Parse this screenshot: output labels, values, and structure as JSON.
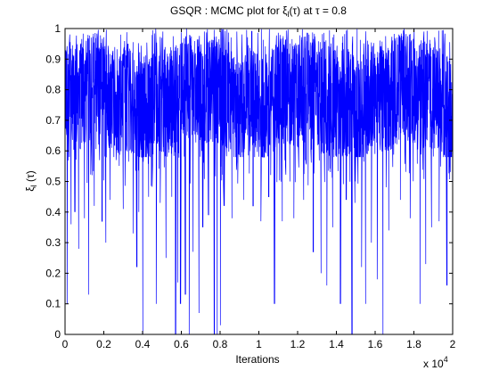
{
  "chart_data": {
    "type": "line",
    "title": "GSQR : MCMC plot for ξl(τ) at τ = 0.8",
    "title_parts": {
      "prefix": "GSQR : MCMC plot for ",
      "xi": "ξ",
      "sub": "l",
      "middle": "(τ) at τ = 0.8"
    },
    "xlabel": "Iterations",
    "ylabel": "ξl (τ)",
    "ylabel_parts": {
      "xi": "ξ",
      "sub": "l",
      "rest": " (τ)"
    },
    "x_exponent_label": {
      "base": "x 10",
      "exp": "4"
    },
    "xlim": [
      0,
      20000
    ],
    "ylim": [
      0,
      1
    ],
    "x_ticks": [
      0,
      2000,
      4000,
      6000,
      8000,
      10000,
      12000,
      14000,
      16000,
      18000,
      20000
    ],
    "x_tick_labels": [
      "0",
      "0.2",
      "0.4",
      "0.6",
      "0.8",
      "1",
      "1.2",
      "1.4",
      "1.6",
      "1.8",
      "2"
    ],
    "y_ticks": [
      0,
      0.1,
      0.2,
      0.3,
      0.4,
      0.5,
      0.6,
      0.7,
      0.8,
      0.9,
      1
    ],
    "y_tick_labels": [
      "0",
      "0.1",
      "0.2",
      "0.3",
      "0.4",
      "0.5",
      "0.6",
      "0.7",
      "0.8",
      "0.9",
      "1"
    ],
    "grid": false,
    "color": "#0000ff",
    "series": [
      {
        "n_iterations": 20000,
        "band_bounds": {
          "min": 0.58,
          "max": 0.99,
          "center": 0.78
        },
        "dips": [
          [
            100,
            0.1
          ],
          [
            300,
            0.36
          ],
          [
            500,
            0.4
          ],
          [
            700,
            0.28
          ],
          [
            1000,
            0.38
          ],
          [
            1200,
            0.13
          ],
          [
            1500,
            0.42
          ],
          [
            1900,
            0.37
          ],
          [
            2100,
            0.3
          ],
          [
            2300,
            0.44
          ],
          [
            3000,
            0.41
          ],
          [
            3500,
            0.33
          ],
          [
            3700,
            0.22
          ],
          [
            3800,
            0.4
          ],
          [
            4000,
            0.0
          ],
          [
            4300,
            0.45
          ],
          [
            4700,
            0.1
          ],
          [
            4900,
            0.43
          ],
          [
            5200,
            0.25
          ],
          [
            5500,
            0.45
          ],
          [
            5700,
            0.0
          ],
          [
            5800,
            0.17
          ],
          [
            5950,
            0.1
          ],
          [
            6200,
            0.13
          ],
          [
            6400,
            0.0
          ],
          [
            6600,
            0.27
          ],
          [
            6900,
            0.07
          ],
          [
            7100,
            0.35
          ],
          [
            7400,
            0.39
          ],
          [
            7700,
            0.0
          ],
          [
            7850,
            0.0
          ],
          [
            8000,
            0.03
          ],
          [
            8200,
            0.42
          ],
          [
            8600,
            0.38
          ],
          [
            9200,
            0.44
          ],
          [
            9700,
            0.42
          ],
          [
            10100,
            0.37
          ],
          [
            10500,
            0.45
          ],
          [
            10800,
            0.1
          ],
          [
            11200,
            0.37
          ],
          [
            11800,
            0.38
          ],
          [
            12300,
            0.44
          ],
          [
            12800,
            0.27
          ],
          [
            13200,
            0.2
          ],
          [
            13500,
            0.16
          ],
          [
            13800,
            0.35
          ],
          [
            14200,
            0.1
          ],
          [
            14500,
            0.44
          ],
          [
            14800,
            0.0
          ],
          [
            14950,
            0.43
          ],
          [
            15300,
            0.22
          ],
          [
            15500,
            0.1
          ],
          [
            15800,
            0.3
          ],
          [
            16100,
            0.18
          ],
          [
            16400,
            0.0
          ],
          [
            16700,
            0.34
          ],
          [
            17300,
            0.44
          ],
          [
            17800,
            0.38
          ],
          [
            18300,
            0.1
          ],
          [
            18600,
            0.23
          ],
          [
            18900,
            0.35
          ],
          [
            19300,
            0.37
          ],
          [
            19700,
            0.16
          ]
        ]
      }
    ]
  }
}
